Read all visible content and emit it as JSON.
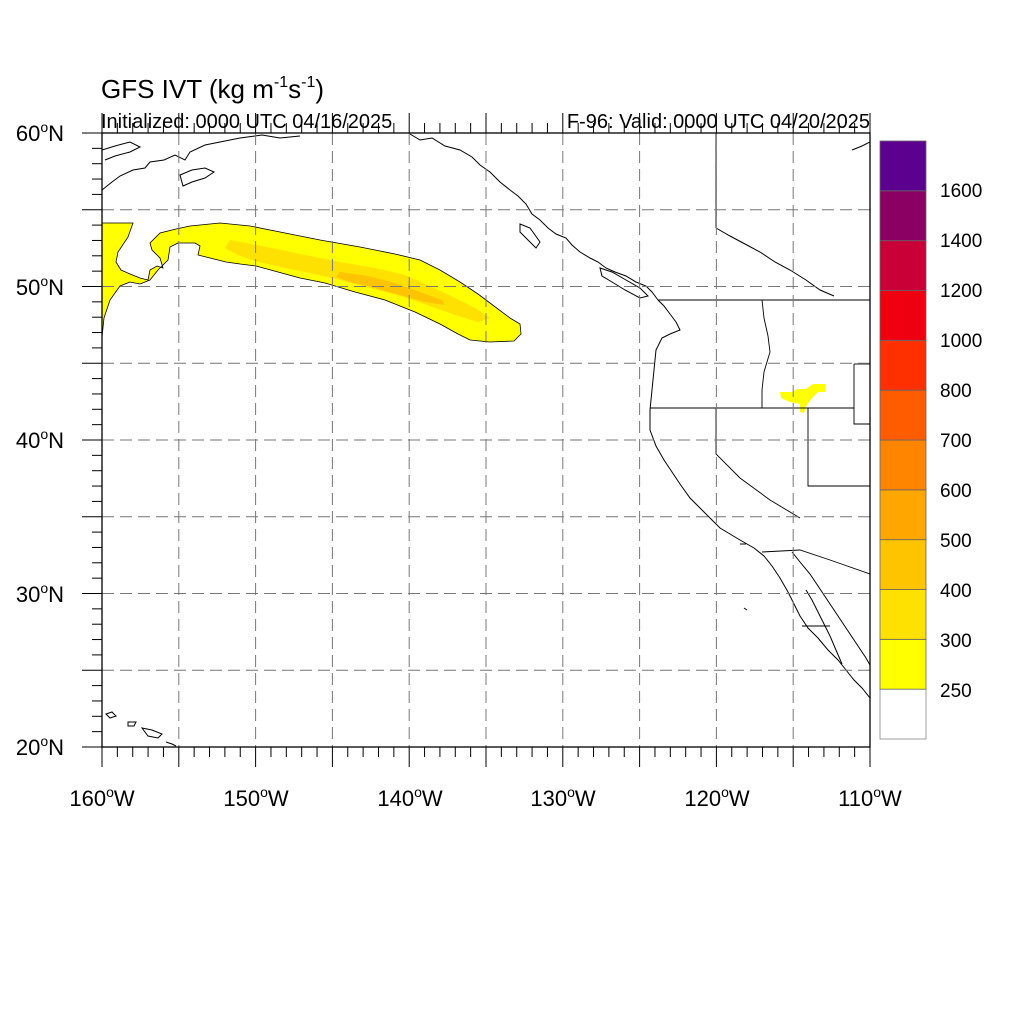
{
  "title": {
    "main": "GFS IVT (kg m",
    "sup1": "-1",
    "mid": "s",
    "sup2": "-1",
    "close": ")"
  },
  "subtitle_left": "Initialized: 0000 UTC 04/16/2025",
  "subtitle_right": "F-96: Valid: 0000 UTC 04/20/2025",
  "map": {
    "lon_range": [
      -160,
      -110
    ],
    "lat_range": [
      20,
      60
    ],
    "grid": true,
    "lat_labels": [
      {
        "deg": "60",
        "hemi": "N",
        "lat": 60
      },
      {
        "deg": "50",
        "hemi": "N",
        "lat": 50
      },
      {
        "deg": "40",
        "hemi": "N",
        "lat": 40
      },
      {
        "deg": "30",
        "hemi": "N",
        "lat": 30
      },
      {
        "deg": "20",
        "hemi": "N",
        "lat": 20
      }
    ],
    "lon_labels": [
      {
        "deg": "160",
        "hemi": "W",
        "lon": -160
      },
      {
        "deg": "150",
        "hemi": "W",
        "lon": -150
      },
      {
        "deg": "140",
        "hemi": "W",
        "lon": -140
      },
      {
        "deg": "130",
        "hemi": "W",
        "lon": -130
      },
      {
        "deg": "120",
        "hemi": "W",
        "lon": -120
      },
      {
        "deg": "110",
        "hemi": "W",
        "lon": -110
      }
    ]
  },
  "colorbar": {
    "colors": [
      "#ffffff",
      "#ffff00",
      "#ffe100",
      "#ffc400",
      "#ffa600",
      "#ff8400",
      "#ff5c00",
      "#ff3000",
      "#ee0010",
      "#c90038",
      "#8a0063",
      "#5c0090"
    ],
    "labels": [
      "250",
      "300",
      "400",
      "500",
      "600",
      "700",
      "800",
      "1000",
      "1200",
      "1400",
      "1600"
    ]
  },
  "ivt_colors": {
    "level_250": "#ffff00",
    "level_300": "#ffe100",
    "level_400": "#ffc400"
  }
}
